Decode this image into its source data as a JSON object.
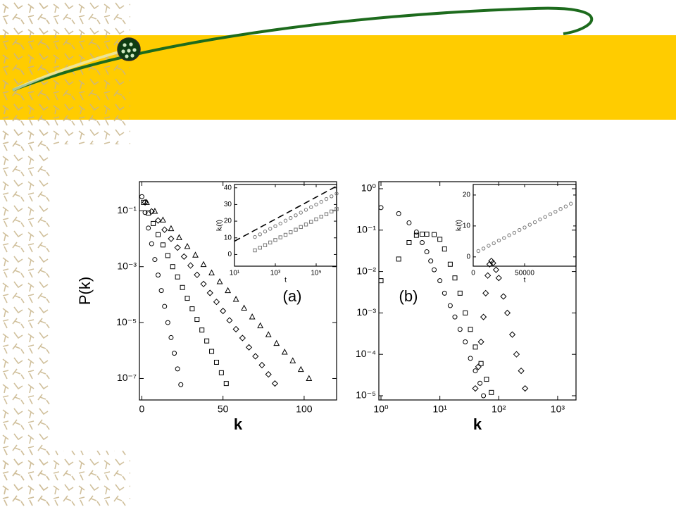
{
  "chart_data": [
    {
      "type": "scatter",
      "xlabel": "k",
      "ylabel": "P(k)",
      "annotation": "(a)",
      "xlim": [
        -1.5,
        120
      ],
      "ylim": [
        1.7e-08,
        1.1
      ],
      "yscale": "log",
      "xticks": [
        0,
        50,
        100
      ],
      "yticks": [
        {
          "value": 0.1,
          "label": "10⁻¹"
        },
        {
          "value": 0.001,
          "label": "10⁻³"
        },
        {
          "value": 1e-05,
          "label": "10⁻⁵"
        },
        {
          "value": 1e-07,
          "label": "10⁻⁷"
        }
      ],
      "series": [
        {
          "marker": "circle",
          "color": "#000000",
          "x": [
            0,
            2,
            4,
            6,
            8,
            10,
            12,
            14,
            16,
            18,
            20,
            22,
            24
          ],
          "values": [
            0.32,
            0.087,
            0.024,
            0.0066,
            0.0018,
            0.0005,
            0.00014,
            3.8e-05,
            1e-05,
            2.9e-06,
            8e-07,
            2.2e-07,
            6e-08
          ]
        },
        {
          "marker": "square",
          "color": "#000000",
          "x": [
            1,
            4,
            7,
            10,
            13,
            16,
            19,
            22,
            25,
            28,
            31,
            34,
            37,
            40,
            43,
            46,
            49,
            52
          ],
          "values": [
            0.2,
            0.083,
            0.035,
            0.014,
            0.006,
            0.0025,
            0.001,
            0.00043,
            0.00018,
            7.4e-05,
            3.1e-05,
            1.3e-05,
            5.4e-06,
            2.2e-06,
            9.3e-07,
            3.8e-07,
            1.6e-07,
            6.6e-08
          ]
        },
        {
          "marker": "diamond",
          "color": "#000000",
          "x": [
            2,
            6,
            10,
            14,
            18,
            22,
            26,
            30,
            34,
            38,
            42,
            46,
            50,
            54,
            58,
            62,
            66,
            70,
            74,
            78,
            82
          ],
          "values": [
            0.2,
            0.095,
            0.045,
            0.021,
            0.01,
            0.0048,
            0.0023,
            0.0011,
            0.00051,
            0.00024,
            0.000115,
            5.5e-05,
            2.6e-05,
            1.2e-05,
            5.8e-06,
            2.8e-06,
            1.3e-06,
            6.2e-07,
            3e-07,
            1.4e-07,
            6.6e-08
          ]
        },
        {
          "marker": "triangle",
          "color": "#000000",
          "x": [
            3,
            8,
            13,
            18,
            23,
            28,
            33,
            38,
            43,
            48,
            53,
            58,
            63,
            68,
            73,
            78,
            83,
            88,
            93,
            98,
            103
          ],
          "values": [
            0.2,
            0.096,
            0.047,
            0.023,
            0.011,
            0.0053,
            0.0026,
            0.0012,
            0.0006,
            0.00029,
            0.00014,
            6.8e-05,
            3.3e-05,
            1.6e-05,
            7.7e-06,
            3.7e-06,
            1.8e-06,
            8.8e-07,
            4.3e-07,
            2.1e-07,
            1e-07
          ]
        }
      ]
    },
    {
      "type": "scatter",
      "xlabel": "t",
      "ylabel": "kᵢ(t)",
      "xlim": [
        10,
        1000000
      ],
      "ylim": [
        -7,
        42
      ],
      "xscale": "log",
      "xticks": [
        {
          "value": 10,
          "label": "10¹"
        },
        {
          "value": 1000,
          "label": "10³"
        },
        {
          "value": 100000,
          "label": "10⁵"
        }
      ],
      "yticks": [
        0,
        10,
        20,
        30,
        40
      ],
      "series": [
        {
          "marker": "line",
          "style": "dashed",
          "color": "#000000",
          "x": [
            10,
            1000000
          ],
          "values": [
            8,
            41
          ]
        },
        {
          "marker": "circle",
          "color": "#777777",
          "x": [
            100,
            178,
            316,
            562,
            1000,
            1778,
            3162,
            5623,
            10000,
            17783,
            31623,
            56234,
            100000,
            177828,
            316228,
            562341,
            1000000
          ],
          "values": [
            10.5,
            12.1,
            13.8,
            15.4,
            17.0,
            18.6,
            20.3,
            21.9,
            23.5,
            25.1,
            26.8,
            28.4,
            30.0,
            31.6,
            33.3,
            34.9,
            36.5
          ]
        },
        {
          "marker": "square",
          "color": "#777777",
          "x": [
            100,
            178,
            316,
            562,
            1000,
            1778,
            3162,
            5623,
            10000,
            17783,
            31623,
            56234,
            100000,
            177828,
            316228,
            562341,
            1000000
          ],
          "values": [
            2.5,
            4.1,
            5.6,
            7.2,
            8.7,
            10.3,
            11.8,
            13.4,
            14.9,
            16.5,
            18.0,
            19.6,
            21.1,
            22.7,
            24.2,
            25.8,
            27.3
          ]
        }
      ]
    },
    {
      "type": "scatter",
      "xlabel": "k",
      "annotation": "(b)",
      "xlim": [
        0.92,
        2050
      ],
      "ylim": [
        7.9e-06,
        1.48
      ],
      "xscale": "log",
      "yscale": "log",
      "xticks": [
        {
          "value": 1,
          "label": "10⁰"
        },
        {
          "value": 10,
          "label": "10¹"
        },
        {
          "value": 100,
          "label": "10²"
        },
        {
          "value": 1000,
          "label": "10³"
        }
      ],
      "yticks": [
        {
          "value": 1,
          "label": "10⁰"
        },
        {
          "value": 0.1,
          "label": "10⁻¹"
        },
        {
          "value": 0.01,
          "label": "10⁻²"
        },
        {
          "value": 0.001,
          "label": "10⁻³"
        },
        {
          "value": 0.0001,
          "label": "10⁻⁴"
        },
        {
          "value": 1e-05,
          "label": "10⁻⁵"
        }
      ],
      "series": [
        {
          "marker": "circle",
          "color": "#000000",
          "x": [
            1,
            2,
            3,
            4,
            5,
            6,
            7,
            8,
            10,
            12,
            15,
            18,
            22,
            27,
            33,
            40,
            48,
            55
          ],
          "values": [
            0.35,
            0.25,
            0.15,
            0.09,
            0.05,
            0.03,
            0.018,
            0.011,
            0.006,
            0.003,
            0.0015,
            0.0008,
            0.0004,
            0.0002,
            8e-05,
            4e-05,
            2e-05,
            1e-05
          ]
        },
        {
          "marker": "square",
          "color": "#000000",
          "x": [
            1,
            2,
            3,
            4,
            5,
            6,
            8,
            10,
            12,
            15,
            18,
            22,
            27,
            33,
            40,
            50,
            62,
            75
          ],
          "values": [
            0.006,
            0.02,
            0.05,
            0.075,
            0.08,
            0.08,
            0.078,
            0.06,
            0.035,
            0.015,
            0.007,
            0.003,
            0.001,
            0.0004,
            0.00015,
            6e-05,
            2.5e-05,
            1.2e-05
          ]
        },
        {
          "marker": "diamond",
          "color": "#000000",
          "x": [
            40,
            45,
            50,
            55,
            60,
            65,
            70,
            75,
            80,
            90,
            100,
            120,
            140,
            170,
            200,
            240,
            280
          ],
          "values": [
            1.5e-05,
            5e-05,
            0.0002,
            0.0008,
            0.003,
            0.008,
            0.015,
            0.018,
            0.016,
            0.011,
            0.007,
            0.0025,
            0.001,
            0.0003,
            0.0001,
            4e-05,
            1.5e-05
          ]
        }
      ]
    },
    {
      "type": "scatter",
      "xlabel": "t",
      "ylabel": "kᵢ(t)",
      "xlim": [
        0,
        100000
      ],
      "ylim": [
        -3,
        23.4
      ],
      "xticks": [
        0,
        50000
      ],
      "yticks": [
        0,
        10,
        20
      ],
      "series": [
        {
          "marker": "circle",
          "color": "#777777",
          "x": [
            5000,
            10000,
            15000,
            20000,
            25000,
            30000,
            35000,
            40000,
            45000,
            50000,
            55000,
            60000,
            65000,
            70000,
            75000,
            80000,
            85000,
            90000,
            95000
          ],
          "values": [
            1.9,
            2.7,
            3.6,
            4.4,
            5.3,
            6.1,
            7.0,
            7.8,
            8.7,
            9.5,
            10.4,
            11.2,
            12.1,
            12.9,
            13.8,
            14.6,
            15.5,
            16.3,
            17.2
          ]
        }
      ]
    }
  ]
}
